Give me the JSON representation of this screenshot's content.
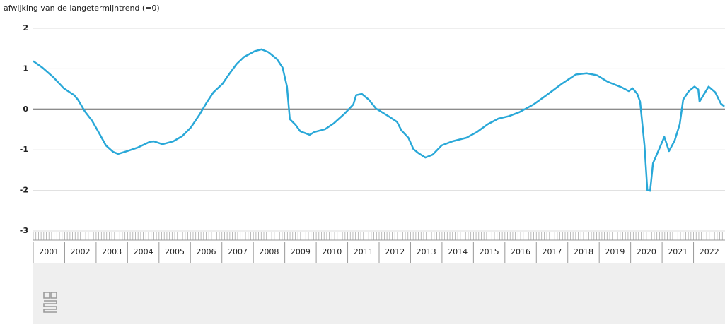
{
  "chart_data": {
    "type": "line",
    "y_axis_label": "afwijking van de langetermijntrend (=0)",
    "x": [
      2001.0,
      2001.29,
      2001.63,
      2001.97,
      2002.3,
      2002.42,
      2002.64,
      2002.87,
      2003.09,
      2003.31,
      2003.54,
      2003.7,
      2003.99,
      2004.33,
      2004.71,
      2004.84,
      2005.11,
      2005.45,
      2005.74,
      2006.01,
      2006.28,
      2006.51,
      2006.73,
      2007.02,
      2007.25,
      2007.47,
      2007.7,
      2008.03,
      2008.26,
      2008.48,
      2008.75,
      2008.93,
      2009.07,
      2009.16,
      2009.34,
      2009.49,
      2009.79,
      2009.94,
      2010.28,
      2010.55,
      2010.91,
      2011.18,
      2011.27,
      2011.45,
      2011.67,
      2011.9,
      2012.3,
      2012.57,
      2012.71,
      2012.93,
      2013.09,
      2013.25,
      2013.47,
      2013.7,
      2013.99,
      2014.33,
      2014.78,
      2015.11,
      2015.45,
      2015.79,
      2016.12,
      2016.46,
      2016.91,
      2017.36,
      2017.81,
      2018.26,
      2018.6,
      2018.93,
      2019.27,
      2019.72,
      2019.94,
      2020.06,
      2020.21,
      2020.3,
      2020.44,
      2020.53,
      2020.62,
      2020.71,
      2020.89,
      2021.07,
      2021.22,
      2021.4,
      2021.56,
      2021.67,
      2021.85,
      2022.03,
      2022.15,
      2022.19,
      2022.33,
      2022.48,
      2022.69,
      2022.87,
      2022.98
    ],
    "series": [
      {
        "color": "#29a8d8",
        "values": [
          1.19,
          1.03,
          0.8,
          0.52,
          0.35,
          0.24,
          -0.05,
          -0.28,
          -0.58,
          -0.89,
          -1.05,
          -1.1,
          -1.03,
          -0.94,
          -0.8,
          -0.79,
          -0.86,
          -0.79,
          -0.66,
          -0.45,
          -0.14,
          0.16,
          0.42,
          0.63,
          0.89,
          1.12,
          1.29,
          1.43,
          1.48,
          1.41,
          1.24,
          1.03,
          0.56,
          -0.24,
          -0.38,
          -0.54,
          -0.63,
          -0.56,
          -0.49,
          -0.35,
          -0.1,
          0.12,
          0.35,
          0.38,
          0.24,
          0.02,
          -0.17,
          -0.31,
          -0.52,
          -0.7,
          -0.98,
          -1.08,
          -1.19,
          -1.12,
          -0.89,
          -0.79,
          -0.7,
          -0.56,
          -0.37,
          -0.23,
          -0.17,
          -0.07,
          0.12,
          0.37,
          0.63,
          0.86,
          0.89,
          0.84,
          0.68,
          0.54,
          0.45,
          0.52,
          0.38,
          0.19,
          -0.89,
          -1.99,
          -2.01,
          -1.33,
          -1.01,
          -0.68,
          -1.03,
          -0.77,
          -0.37,
          0.24,
          0.45,
          0.56,
          0.49,
          0.19,
          0.37,
          0.56,
          0.42,
          0.14,
          0.07
        ]
      }
    ],
    "xlim": [
      2001,
      2023
    ],
    "xticks": [
      2001,
      2002,
      2003,
      2004,
      2005,
      2006,
      2007,
      2008,
      2009,
      2010,
      2011,
      2012,
      2013,
      2014,
      2015,
      2016,
      2017,
      2018,
      2019,
      2020,
      2021,
      2022
    ],
    "ylim": [
      -3,
      2
    ],
    "yticks": [
      -3,
      -2,
      -1,
      0,
      1,
      2
    ],
    "grid": true
  }
}
